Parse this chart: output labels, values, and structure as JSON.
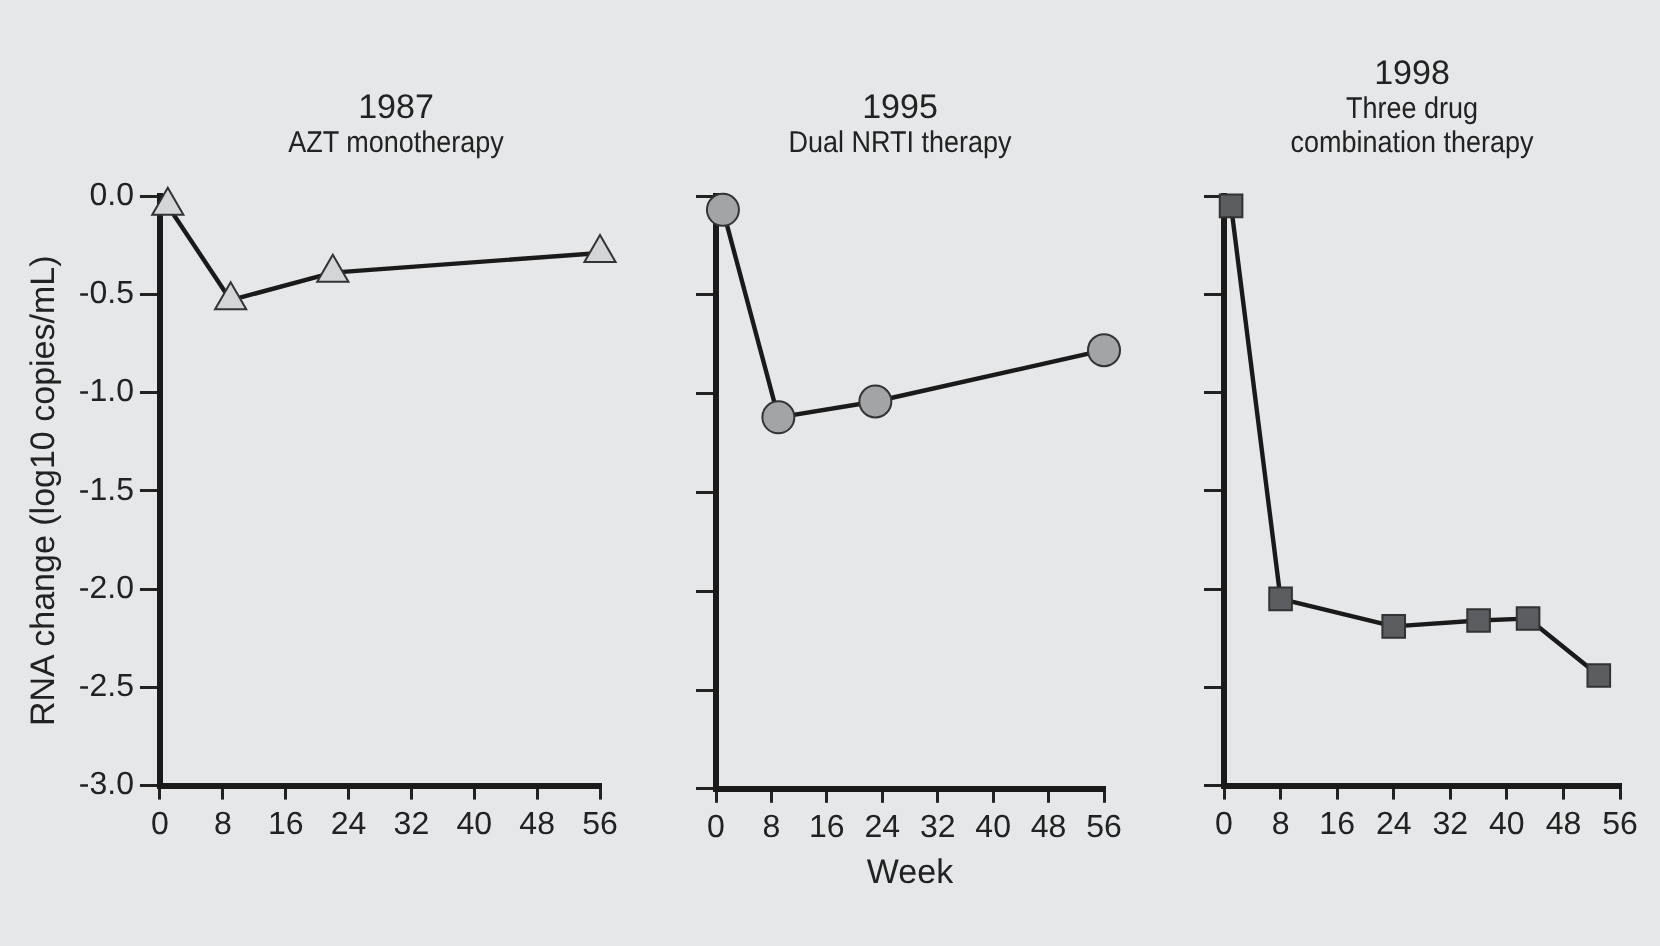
{
  "chart_data": [
    {
      "type": "line",
      "title": "1987",
      "subtitle": "AZT monotherapy",
      "ylabel": "RNA change (log10 copies/mL)",
      "x": [
        1,
        9,
        22,
        56
      ],
      "series": [
        {
          "color": "#d4d5d7",
          "values": [
            -0.05,
            -0.53,
            -0.39,
            -0.29
          ]
        }
      ],
      "marker": "triangle",
      "xlim": [
        0,
        56
      ],
      "xticks": [
        0,
        8,
        16,
        24,
        32,
        40,
        48,
        56
      ],
      "ylim": [
        -3,
        0
      ],
      "yticks": [
        {
          "value": 0,
          "label": "0.0"
        },
        -0.5,
        {
          "value": -1,
          "label": "-1.0"
        },
        -1.5,
        {
          "value": -2,
          "label": "-2.0"
        },
        -2.5,
        {
          "value": -3,
          "label": "-3.0"
        }
      ]
    },
    {
      "type": "line",
      "title": "1995",
      "subtitle": "Dual NRTI therapy",
      "xlabel": "Week",
      "x": [
        1,
        9,
        23,
        56
      ],
      "series": [
        {
          "color": "#a3a4a6",
          "values": [
            -0.07,
            -1.12,
            -1.04,
            -0.78
          ]
        }
      ],
      "marker": "circle",
      "xlim": [
        0,
        56
      ],
      "xticks": [
        0,
        8,
        16,
        24,
        32,
        40,
        48,
        56
      ],
      "ylim": [
        -3,
        0
      ],
      "yticks": [
        {
          "value": 0,
          "label": null
        },
        {
          "value": -0.5,
          "label": null
        },
        {
          "value": -1,
          "label": null
        },
        {
          "value": -1.5,
          "label": null
        },
        {
          "value": -2,
          "label": null
        },
        {
          "value": -2.5,
          "label": null
        },
        {
          "value": -3,
          "label": null
        }
      ],
      "tick_labels": "x"
    },
    {
      "type": "line",
      "title": "1998",
      "subtitle": "Three drug\ncombination therapy",
      "x": [
        1,
        8,
        24,
        36,
        43,
        53
      ],
      "series": [
        {
          "color": "#5c5d60",
          "values": [
            -0.05,
            -2.05,
            -2.19,
            -2.16,
            -2.15,
            -2.44
          ]
        }
      ],
      "marker": "square",
      "xlim": [
        0,
        56
      ],
      "xticks": [
        0,
        8,
        16,
        24,
        32,
        40,
        48,
        56
      ],
      "ylim": [
        -3,
        0
      ],
      "yticks": [
        {
          "value": 0,
          "label": null
        },
        {
          "value": -0.5,
          "label": null
        },
        {
          "value": -1,
          "label": null
        },
        {
          "value": -1.5,
          "label": null
        },
        {
          "value": -2,
          "label": null
        },
        {
          "value": -2.5,
          "label": null
        },
        {
          "value": -3,
          "label": null
        }
      ],
      "tick_labels": "x"
    }
  ]
}
